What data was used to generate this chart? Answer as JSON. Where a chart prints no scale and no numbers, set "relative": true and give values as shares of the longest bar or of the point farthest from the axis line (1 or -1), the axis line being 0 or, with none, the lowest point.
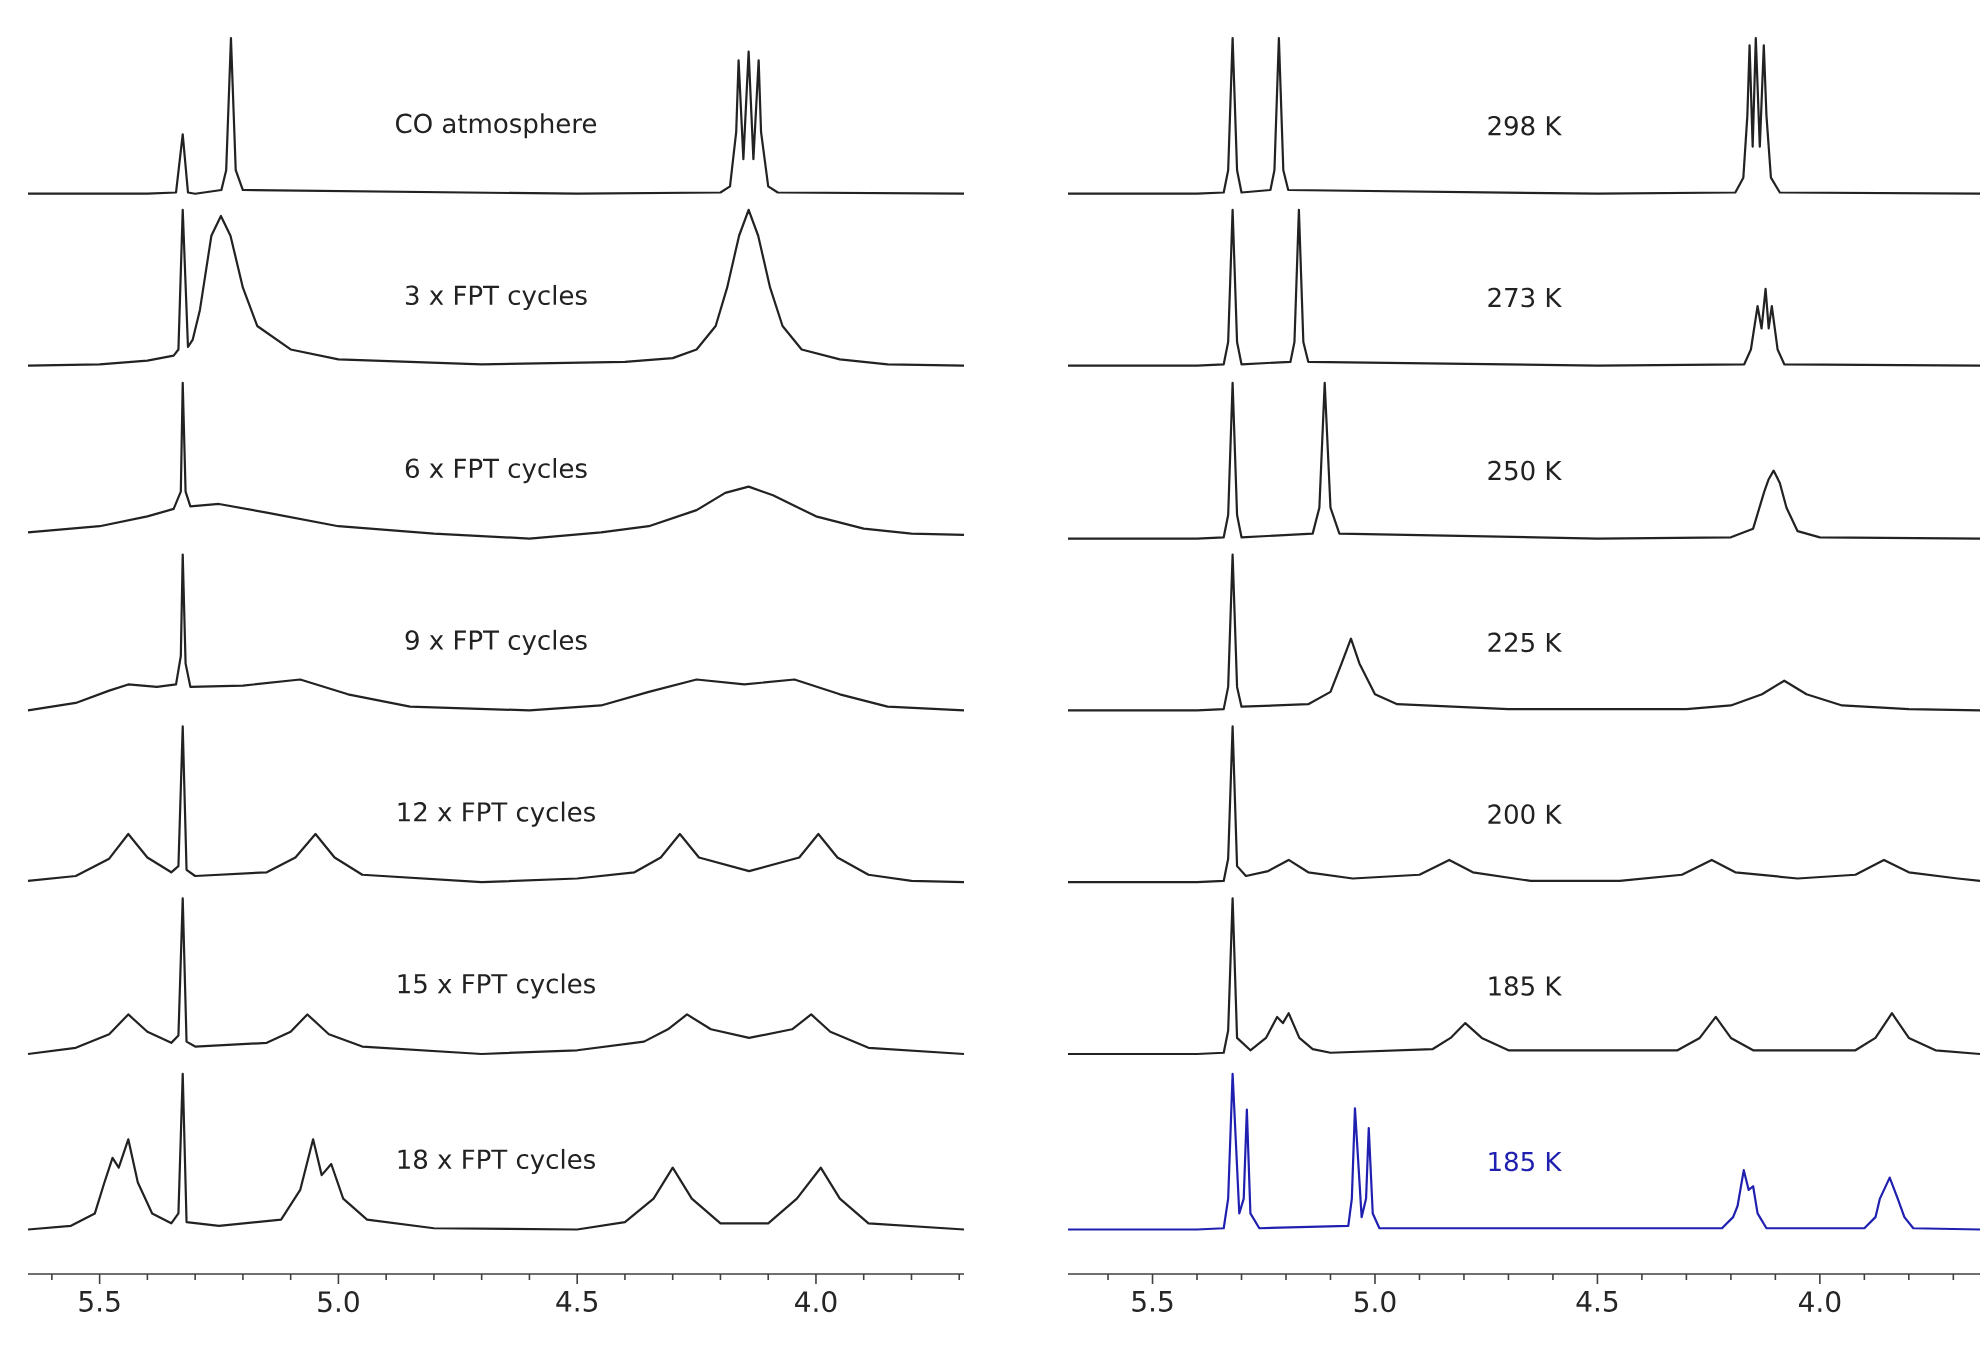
{
  "chart_data": [
    {
      "type": "line",
      "relative": true,
      "xlim": [
        5.65,
        3.69
      ],
      "xticks": [
        {
          "value": 5.5,
          "label": "5.5"
        },
        {
          "value": 5.0,
          "label": "5.0"
        },
        {
          "value": 4.5,
          "label": "4.5"
        },
        {
          "value": 4.0,
          "label": "4.0"
        },
        {
          "value": 5.6,
          "label": null
        },
        {
          "value": 5.4,
          "label": null
        },
        {
          "value": 5.3,
          "label": null
        },
        {
          "value": 5.2,
          "label": null
        },
        {
          "value": 5.1,
          "label": null
        },
        {
          "value": 4.9,
          "label": null
        },
        {
          "value": 4.8,
          "label": null
        },
        {
          "value": 4.7,
          "label": null
        },
        {
          "value": 4.6,
          "label": null
        },
        {
          "value": 4.4,
          "label": null
        },
        {
          "value": 4.3,
          "label": null
        },
        {
          "value": 4.2,
          "label": null
        },
        {
          "value": 4.1,
          "label": null
        },
        {
          "value": 3.9,
          "label": null
        },
        {
          "value": 3.8,
          "label": null
        },
        {
          "value": 3.7,
          "label": null
        }
      ],
      "series": [
        {
          "name": "CO atmosphere",
          "color": "#222222",
          "x": [
            5.65,
            5.4,
            5.34,
            5.326,
            5.315,
            5.3,
            5.245,
            5.235,
            5.225,
            5.215,
            5.2,
            4.5,
            4.2,
            4.18,
            4.167,
            4.162,
            4.152,
            4.141,
            4.131,
            4.12,
            4.115,
            4.1,
            4.08,
            3.69
          ],
          "values": [
            0.874,
            0.874,
            0.875,
            0.922,
            0.875,
            0.874,
            0.877,
            0.893,
            1.0,
            0.893,
            0.877,
            0.874,
            0.875,
            0.88,
            0.924,
            0.982,
            0.902,
            0.989,
            0.902,
            0.982,
            0.924,
            0.88,
            0.875,
            0.874
          ]
        },
        {
          "name": "3 x FPT cycles",
          "color": "#222222",
          "x": [
            5.65,
            5.5,
            5.4,
            5.345,
            5.335,
            5.326,
            5.315,
            5.305,
            5.29,
            5.266,
            5.246,
            5.226,
            5.2,
            5.17,
            5.1,
            5.0,
            4.7,
            4.4,
            4.3,
            4.25,
            4.21,
            4.186,
            4.161,
            4.141,
            4.121,
            4.096,
            4.07,
            4.03,
            3.95,
            3.85,
            3.69
          ],
          "values": [
            0.735,
            0.736,
            0.739,
            0.743,
            0.748,
            0.861,
            0.75,
            0.756,
            0.78,
            0.84,
            0.856,
            0.84,
            0.798,
            0.767,
            0.748,
            0.74,
            0.736,
            0.738,
            0.741,
            0.748,
            0.767,
            0.798,
            0.84,
            0.861,
            0.84,
            0.798,
            0.767,
            0.748,
            0.74,
            0.736,
            0.735
          ]
        },
        {
          "name": "6 x FPT cycles",
          "color": "#222222",
          "x": [
            5.65,
            5.5,
            5.4,
            5.345,
            5.33,
            5.326,
            5.32,
            5.31,
            5.25,
            5.15,
            5.0,
            4.8,
            4.6,
            4.45,
            4.35,
            4.25,
            4.19,
            4.141,
            4.09,
            4.0,
            3.9,
            3.8,
            3.69
          ],
          "values": [
            0.6,
            0.605,
            0.613,
            0.619,
            0.633,
            0.721,
            0.633,
            0.621,
            0.623,
            0.616,
            0.605,
            0.599,
            0.595,
            0.6,
            0.605,
            0.618,
            0.632,
            0.637,
            0.63,
            0.613,
            0.603,
            0.599,
            0.598
          ]
        },
        {
          "name": "9 x FPT cycles",
          "color": "#222222",
          "x": [
            5.65,
            5.55,
            5.48,
            5.44,
            5.38,
            5.34,
            5.33,
            5.326,
            5.32,
            5.31,
            5.2,
            5.08,
            4.98,
            4.85,
            4.6,
            4.45,
            4.35,
            4.25,
            4.15,
            4.045,
            3.95,
            3.85,
            3.69
          ],
          "values": [
            0.456,
            0.462,
            0.472,
            0.477,
            0.475,
            0.477,
            0.5,
            0.582,
            0.494,
            0.475,
            0.476,
            0.481,
            0.469,
            0.459,
            0.456,
            0.46,
            0.471,
            0.481,
            0.477,
            0.481,
            0.469,
            0.459,
            0.456
          ]
        },
        {
          "name": "12 x FPT cycles",
          "color": "#222222",
          "x": [
            5.65,
            5.55,
            5.48,
            5.44,
            5.4,
            5.35,
            5.335,
            5.326,
            5.318,
            5.3,
            5.15,
            5.09,
            5.048,
            5.008,
            4.95,
            4.7,
            4.5,
            4.38,
            4.325,
            4.285,
            4.245,
            4.14,
            4.035,
            3.995,
            3.955,
            3.89,
            3.8,
            3.69
          ],
          "values": [
            0.318,
            0.322,
            0.336,
            0.356,
            0.337,
            0.325,
            0.33,
            0.443,
            0.327,
            0.322,
            0.325,
            0.337,
            0.356,
            0.337,
            0.323,
            0.317,
            0.32,
            0.325,
            0.337,
            0.356,
            0.337,
            0.326,
            0.337,
            0.356,
            0.337,
            0.323,
            0.318,
            0.317
          ]
        },
        {
          "name": "15 x FPT cycles",
          "color": "#222222",
          "x": [
            5.65,
            5.55,
            5.48,
            5.44,
            5.4,
            5.35,
            5.335,
            5.326,
            5.318,
            5.3,
            5.15,
            5.1,
            5.065,
            5.02,
            4.95,
            4.7,
            4.5,
            4.36,
            4.31,
            4.27,
            4.22,
            4.14,
            4.05,
            4.01,
            3.97,
            3.89,
            3.69
          ],
          "values": [
            0.178,
            0.183,
            0.194,
            0.21,
            0.196,
            0.187,
            0.193,
            0.304,
            0.188,
            0.184,
            0.187,
            0.196,
            0.21,
            0.194,
            0.184,
            0.178,
            0.181,
            0.188,
            0.198,
            0.21,
            0.198,
            0.191,
            0.198,
            0.21,
            0.196,
            0.183,
            0.178
          ]
        },
        {
          "name": "18 x FPT cycles",
          "color": "#222222",
          "x": [
            5.65,
            5.56,
            5.51,
            5.49,
            5.473,
            5.46,
            5.44,
            5.42,
            5.39,
            5.35,
            5.335,
            5.326,
            5.318,
            5.25,
            5.12,
            5.08,
            5.053,
            5.035,
            5.015,
            4.99,
            4.94,
            4.8,
            4.5,
            4.4,
            4.34,
            4.3,
            4.26,
            4.2,
            4.1,
            4.04,
            3.99,
            3.95,
            3.89,
            3.69
          ],
          "values": [
            0.036,
            0.039,
            0.049,
            0.074,
            0.094,
            0.086,
            0.109,
            0.074,
            0.049,
            0.041,
            0.049,
            0.162,
            0.042,
            0.039,
            0.044,
            0.068,
            0.109,
            0.08,
            0.089,
            0.061,
            0.044,
            0.037,
            0.036,
            0.042,
            0.061,
            0.086,
            0.061,
            0.041,
            0.041,
            0.061,
            0.086,
            0.061,
            0.041,
            0.036
          ]
        }
      ]
    },
    {
      "type": "line",
      "relative": true,
      "xlim": [
        5.69,
        3.64
      ],
      "xticks": [
        {
          "value": 5.5,
          "label": "5.5"
        },
        {
          "value": 5.0,
          "label": "5.0"
        },
        {
          "value": 4.5,
          "label": "4.5"
        },
        {
          "value": 4.0,
          "label": "4.0"
        },
        {
          "value": 5.6,
          "label": null
        },
        {
          "value": 5.4,
          "label": null
        },
        {
          "value": 5.3,
          "label": null
        },
        {
          "value": 5.2,
          "label": null
        },
        {
          "value": 5.1,
          "label": null
        },
        {
          "value": 4.9,
          "label": null
        },
        {
          "value": 4.8,
          "label": null
        },
        {
          "value": 4.7,
          "label": null
        },
        {
          "value": 4.6,
          "label": null
        },
        {
          "value": 4.4,
          "label": null
        },
        {
          "value": 4.3,
          "label": null
        },
        {
          "value": 4.2,
          "label": null
        },
        {
          "value": 4.1,
          "label": null
        },
        {
          "value": 3.9,
          "label": null
        },
        {
          "value": 3.8,
          "label": null
        },
        {
          "value": 3.7,
          "label": null
        }
      ],
      "series": [
        {
          "name": "298 K",
          "color": "#222222",
          "x": [
            5.69,
            5.4,
            5.34,
            5.33,
            5.32,
            5.31,
            5.3,
            5.235,
            5.226,
            5.216,
            5.206,
            5.195,
            4.5,
            4.19,
            4.172,
            4.163,
            4.158,
            4.151,
            4.144,
            4.135,
            4.126,
            4.12,
            4.11,
            4.09,
            3.64
          ],
          "values": [
            0.874,
            0.874,
            0.875,
            0.893,
            1.0,
            0.893,
            0.875,
            0.877,
            0.893,
            1.0,
            0.893,
            0.877,
            0.874,
            0.875,
            0.887,
            0.937,
            0.994,
            0.912,
            1.0,
            0.912,
            0.994,
            0.937,
            0.887,
            0.875,
            0.874
          ]
        },
        {
          "name": "273 K",
          "color": "#222222",
          "x": [
            5.69,
            5.4,
            5.34,
            5.33,
            5.32,
            5.31,
            5.3,
            5.19,
            5.181,
            5.171,
            5.161,
            5.15,
            4.5,
            4.17,
            4.155,
            4.14,
            4.131,
            4.122,
            4.115,
            4.108,
            4.095,
            4.08,
            3.64
          ],
          "values": [
            0.735,
            0.735,
            0.736,
            0.754,
            0.861,
            0.754,
            0.736,
            0.738,
            0.754,
            0.861,
            0.754,
            0.738,
            0.735,
            0.736,
            0.748,
            0.783,
            0.765,
            0.797,
            0.765,
            0.783,
            0.748,
            0.736,
            0.735
          ]
        },
        {
          "name": "250 K",
          "color": "#222222",
          "x": [
            5.69,
            5.4,
            5.34,
            5.33,
            5.32,
            5.31,
            5.3,
            5.14,
            5.125,
            5.113,
            5.1,
            5.08,
            4.5,
            4.2,
            4.15,
            4.125,
            4.115,
            4.104,
            4.09,
            4.075,
            4.05,
            4.0,
            3.64
          ],
          "values": [
            0.595,
            0.595,
            0.596,
            0.614,
            0.721,
            0.614,
            0.596,
            0.599,
            0.62,
            0.721,
            0.62,
            0.599,
            0.595,
            0.596,
            0.603,
            0.633,
            0.643,
            0.65,
            0.64,
            0.62,
            0.601,
            0.596,
            0.595
          ]
        },
        {
          "name": "225 K",
          "color": "#222222",
          "x": [
            5.69,
            5.4,
            5.34,
            5.33,
            5.32,
            5.31,
            5.3,
            5.15,
            5.1,
            5.075,
            5.054,
            5.035,
            5.0,
            4.95,
            4.7,
            4.3,
            4.2,
            4.13,
            4.08,
            4.03,
            3.95,
            3.8,
            3.64
          ],
          "values": [
            0.456,
            0.456,
            0.457,
            0.475,
            0.582,
            0.475,
            0.459,
            0.461,
            0.471,
            0.494,
            0.514,
            0.494,
            0.469,
            0.461,
            0.457,
            0.457,
            0.46,
            0.469,
            0.48,
            0.469,
            0.46,
            0.457,
            0.456
          ]
        },
        {
          "name": "200 K",
          "color": "#222222",
          "x": [
            5.69,
            5.4,
            5.34,
            5.33,
            5.32,
            5.31,
            5.29,
            5.24,
            5.194,
            5.15,
            5.05,
            4.9,
            4.833,
            4.78,
            4.65,
            4.45,
            4.31,
            4.243,
            4.19,
            4.05,
            3.92,
            3.856,
            3.8,
            3.69,
            3.64
          ],
          "values": [
            0.317,
            0.317,
            0.318,
            0.336,
            0.443,
            0.33,
            0.322,
            0.326,
            0.335,
            0.325,
            0.32,
            0.323,
            0.335,
            0.325,
            0.318,
            0.318,
            0.323,
            0.335,
            0.325,
            0.32,
            0.323,
            0.335,
            0.325,
            0.32,
            0.318
          ]
        },
        {
          "name": "185 K",
          "color": "#222222",
          "x": [
            5.69,
            5.4,
            5.34,
            5.33,
            5.32,
            5.31,
            5.28,
            5.245,
            5.22,
            5.207,
            5.194,
            5.17,
            5.14,
            5.1,
            4.87,
            4.83,
            4.797,
            4.76,
            4.7,
            4.32,
            4.27,
            4.234,
            4.2,
            4.15,
            3.92,
            3.875,
            3.838,
            3.8,
            3.74,
            3.64
          ],
          "values": [
            0.178,
            0.178,
            0.179,
            0.197,
            0.304,
            0.191,
            0.181,
            0.191,
            0.208,
            0.203,
            0.211,
            0.191,
            0.182,
            0.179,
            0.182,
            0.191,
            0.203,
            0.191,
            0.181,
            0.181,
            0.191,
            0.208,
            0.191,
            0.181,
            0.181,
            0.191,
            0.211,
            0.191,
            0.181,
            0.178
          ]
        },
        {
          "name": "185 K",
          "color": "#2020b0",
          "x": [
            5.69,
            5.4,
            5.34,
            5.33,
            5.32,
            5.305,
            5.295,
            5.288,
            5.28,
            5.26,
            5.06,
            5.052,
            5.045,
            5.03,
            5.02,
            5.014,
            5.005,
            4.99,
            4.22,
            4.195,
            4.185,
            4.171,
            4.16,
            4.15,
            4.14,
            4.12,
            3.9,
            3.875,
            3.865,
            3.843,
            3.825,
            3.81,
            3.79,
            3.64
          ],
          "values": [
            0.036,
            0.036,
            0.037,
            0.061,
            0.162,
            0.049,
            0.061,
            0.133,
            0.049,
            0.037,
            0.039,
            0.061,
            0.134,
            0.046,
            0.061,
            0.118,
            0.049,
            0.037,
            0.037,
            0.046,
            0.055,
            0.084,
            0.068,
            0.071,
            0.049,
            0.037,
            0.037,
            0.046,
            0.061,
            0.078,
            0.061,
            0.046,
            0.037,
            0.036
          ]
        }
      ]
    }
  ]
}
